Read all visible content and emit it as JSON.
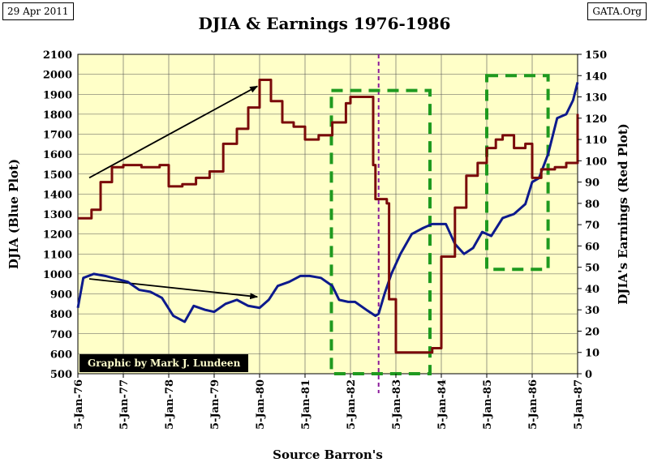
{
  "header": {
    "date": "29 Apr 2011",
    "site": "GATA.Org"
  },
  "credit": "Graphic by Mark J. Lundeen",
  "colors": {
    "djia": "#0d1a8c",
    "earnings": "#7a0a0a",
    "plot_bg": "#ffffc8",
    "box": "#1f9a1f",
    "marker": "#8b1a9b"
  },
  "chart_data": {
    "type": "line",
    "title": "DJIA & Earnings 1976-1986",
    "xlabel": "Source Barron's",
    "ylabel": "DJIA (Blue Plot)",
    "y2label": "DJIA's Earnings (Red Plot)",
    "xlim": [
      1976,
      1987
    ],
    "ylim": [
      500,
      2100
    ],
    "y2lim": [
      0,
      150
    ],
    "x_ticks": [
      1976,
      1977,
      1978,
      1979,
      1980,
      1981,
      1982,
      1983,
      1984,
      1985,
      1986,
      1987
    ],
    "x_tick_labels": [
      "5-Jan-76",
      "5-Jan-77",
      "5-Jan-78",
      "5-Jan-79",
      "5-Jan-80",
      "5-Jan-81",
      "5-Jan-82",
      "5-Jan-83",
      "5-Jan-84",
      "5-Jan-85",
      "5-Jan-86",
      "5-Jan-87"
    ],
    "y_ticks": [
      500,
      600,
      700,
      800,
      900,
      1000,
      1100,
      1200,
      1300,
      1400,
      1500,
      1600,
      1700,
      1800,
      1900,
      2000,
      2100
    ],
    "y2_ticks": [
      0,
      10,
      20,
      30,
      40,
      50,
      60,
      70,
      80,
      90,
      100,
      110,
      120,
      130,
      140,
      150
    ],
    "series": [
      {
        "name": "DJIA",
        "axis": "left",
        "x": [
          1976.0,
          1976.12,
          1976.35,
          1976.6,
          1976.85,
          1977.1,
          1977.35,
          1977.6,
          1977.85,
          1978.1,
          1978.35,
          1978.55,
          1978.8,
          1979.0,
          1979.25,
          1979.5,
          1979.75,
          1980.0,
          1980.2,
          1980.4,
          1980.65,
          1980.9,
          1981.1,
          1981.35,
          1981.6,
          1981.75,
          1981.95,
          1982.1,
          1982.35,
          1982.55,
          1982.62,
          1982.75,
          1982.9,
          1983.1,
          1983.35,
          1983.6,
          1983.8,
          1984.1,
          1984.3,
          1984.5,
          1984.7,
          1984.9,
          1985.1,
          1985.35,
          1985.6,
          1985.85,
          1986.0,
          1986.15,
          1986.35,
          1986.55,
          1986.75,
          1986.9,
          1987.0
        ],
        "values": [
          830,
          980,
          1000,
          990,
          975,
          960,
          920,
          910,
          880,
          790,
          760,
          840,
          820,
          810,
          850,
          870,
          840,
          830,
          870,
          940,
          960,
          990,
          990,
          980,
          940,
          870,
          860,
          860,
          820,
          790,
          800,
          900,
          1000,
          1100,
          1200,
          1230,
          1250,
          1250,
          1150,
          1100,
          1130,
          1210,
          1190,
          1280,
          1300,
          1350,
          1460,
          1480,
          1600,
          1780,
          1800,
          1870,
          1960
        ]
      },
      {
        "name": "Earnings",
        "axis": "right",
        "x": [
          1976.0,
          1976.3,
          1976.5,
          1976.75,
          1977.0,
          1977.4,
          1977.8,
          1978.0,
          1978.3,
          1978.6,
          1978.9,
          1979.2,
          1979.5,
          1979.75,
          1980.0,
          1980.25,
          1980.5,
          1980.75,
          1981.0,
          1981.3,
          1981.6,
          1981.9,
          1982.0,
          1982.2,
          1982.5,
          1982.55,
          1982.8,
          1982.85,
          1983.0,
          1983.5,
          1983.8,
          1984.0,
          1984.3,
          1984.55,
          1984.8,
          1985.0,
          1985.2,
          1985.35,
          1985.6,
          1985.85,
          1986.0,
          1986.2,
          1986.5,
          1986.75,
          1987.0
        ],
        "values": [
          73,
          77,
          90,
          97,
          98,
          97,
          98,
          88,
          89,
          92,
          95,
          108,
          115,
          125,
          138,
          128,
          118,
          116,
          110,
          112,
          118,
          127,
          130,
          130,
          98,
          82,
          80,
          35,
          10,
          10,
          12,
          55,
          78,
          93,
          99,
          106,
          110,
          112,
          106,
          108,
          92,
          96,
          97,
          99,
          122
        ]
      }
    ],
    "annotations": [
      {
        "type": "arrow",
        "label": "earnings uptrend",
        "from": [
          1976.25,
          92
        ],
        "to": [
          1979.95,
          135
        ],
        "axis": "right"
      },
      {
        "type": "arrow",
        "label": "DJIA downtrend",
        "from": [
          1976.25,
          975
        ],
        "to": [
          1979.95,
          885
        ],
        "axis": "left"
      },
      {
        "type": "vline",
        "label": "dividing line",
        "x": 1982.62
      },
      {
        "type": "box",
        "label": "earnings collapse window",
        "x": [
          1981.58,
          1983.75
        ],
        "y": [
          0,
          133
        ]
      },
      {
        "type": "box",
        "label": "recovery window",
        "x": [
          1985.0,
          1986.35
        ],
        "y": [
          49,
          140
        ]
      }
    ]
  }
}
